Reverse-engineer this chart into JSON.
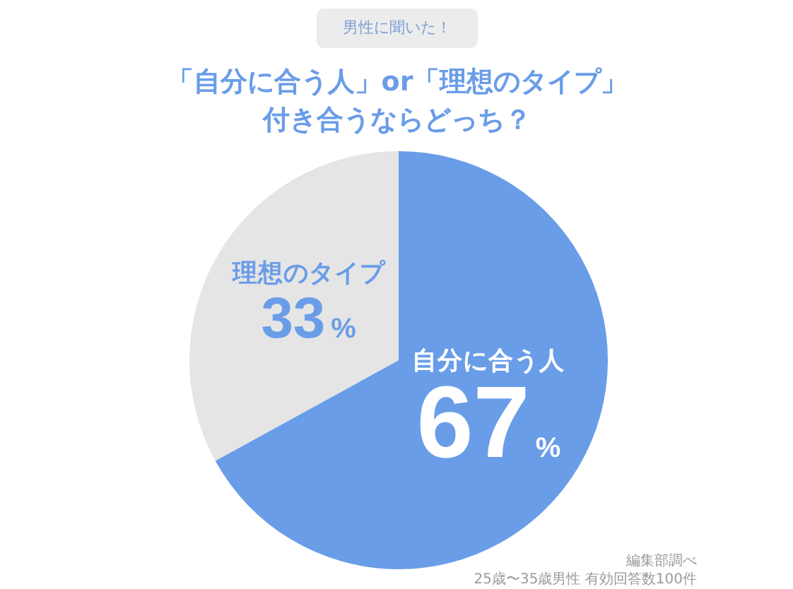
{
  "chart_data": {
    "type": "pie",
    "title": "「自分に合う人」or「理想のタイプ」付き合うならどっち？",
    "subtitle": "男性に聞いた！",
    "categories": [
      "自分に合う人",
      "理想のタイプ"
    ],
    "values": [
      67,
      33
    ],
    "colors": [
      "#6a9de8",
      "#e5e5e5"
    ],
    "value_labels": [
      "67%",
      "33%"
    ],
    "annotations": [
      "編集部調べ",
      "25歳〜35歳男性 有効回答数100件"
    ]
  }
}
